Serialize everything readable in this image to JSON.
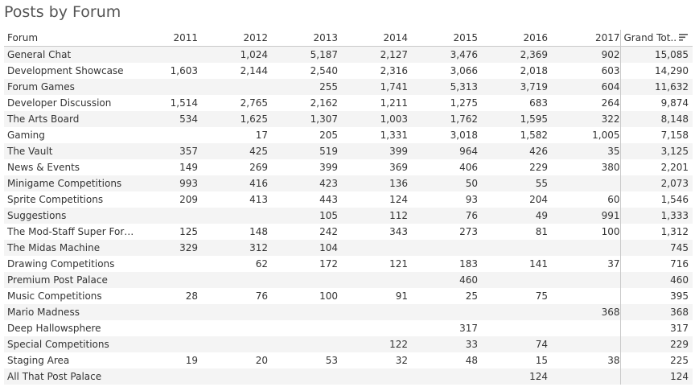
{
  "title": "Posts by Forum",
  "sort_icon": "sort-descending-icon",
  "chart_data": {
    "type": "table",
    "title": "Posts by Forum",
    "row_header": "Forum",
    "columns": [
      "2011",
      "2012",
      "2013",
      "2014",
      "2015",
      "2016",
      "2017"
    ],
    "total_header": "Grand Tot..",
    "rows": [
      {
        "forum": "General Chat",
        "values": [
          "",
          "1,024",
          "5,187",
          "2,127",
          "3,476",
          "2,369",
          "902"
        ],
        "total": "15,085"
      },
      {
        "forum": "Development Showcase",
        "values": [
          "1,603",
          "2,144",
          "2,540",
          "2,316",
          "3,066",
          "2,018",
          "603"
        ],
        "total": "14,290"
      },
      {
        "forum": "Forum Games",
        "values": [
          "",
          "",
          "255",
          "1,741",
          "5,313",
          "3,719",
          "604"
        ],
        "total": "11,632"
      },
      {
        "forum": "Developer Discussion",
        "values": [
          "1,514",
          "2,765",
          "2,162",
          "1,211",
          "1,275",
          "683",
          "264"
        ],
        "total": "9,874"
      },
      {
        "forum": "The Arts Board",
        "values": [
          "534",
          "1,625",
          "1,307",
          "1,003",
          "1,762",
          "1,595",
          "322"
        ],
        "total": "8,148"
      },
      {
        "forum": "Gaming",
        "values": [
          "",
          "17",
          "205",
          "1,331",
          "3,018",
          "1,582",
          "1,005"
        ],
        "total": "7,158"
      },
      {
        "forum": "The Vault",
        "values": [
          "357",
          "425",
          "519",
          "399",
          "964",
          "426",
          "35"
        ],
        "total": "3,125"
      },
      {
        "forum": "News & Events",
        "values": [
          "149",
          "269",
          "399",
          "369",
          "406",
          "229",
          "380"
        ],
        "total": "2,201"
      },
      {
        "forum": "Minigame Competitions",
        "values": [
          "993",
          "416",
          "423",
          "136",
          "50",
          "55",
          ""
        ],
        "total": "2,073"
      },
      {
        "forum": "Sprite Competitions",
        "values": [
          "209",
          "413",
          "443",
          "124",
          "93",
          "204",
          "60"
        ],
        "total": "1,546"
      },
      {
        "forum": "Suggestions",
        "values": [
          "",
          "",
          "105",
          "112",
          "76",
          "49",
          "991"
        ],
        "total": "1,333"
      },
      {
        "forum": "The Mod-Staff Super Foru..",
        "values": [
          "125",
          "148",
          "242",
          "343",
          "273",
          "81",
          "100"
        ],
        "total": "1,312"
      },
      {
        "forum": "The Midas Machine",
        "values": [
          "329",
          "312",
          "104",
          "",
          "",
          "",
          ""
        ],
        "total": "745"
      },
      {
        "forum": "Drawing Competitions",
        "values": [
          "",
          "62",
          "172",
          "121",
          "183",
          "141",
          "37"
        ],
        "total": "716"
      },
      {
        "forum": "Premium Post Palace",
        "values": [
          "",
          "",
          "",
          "",
          "460",
          "",
          ""
        ],
        "total": "460"
      },
      {
        "forum": "Music Competitions",
        "values": [
          "28",
          "76",
          "100",
          "91",
          "25",
          "75",
          ""
        ],
        "total": "395"
      },
      {
        "forum": "Mario Madness",
        "values": [
          "",
          "",
          "",
          "",
          "",
          "",
          "368"
        ],
        "total": "368"
      },
      {
        "forum": "Deep Hallowsphere",
        "values": [
          "",
          "",
          "",
          "",
          "317",
          "",
          ""
        ],
        "total": "317"
      },
      {
        "forum": "Special Competitions",
        "values": [
          "",
          "",
          "",
          "122",
          "33",
          "74",
          ""
        ],
        "total": "229"
      },
      {
        "forum": "Staging Area",
        "values": [
          "19",
          "20",
          "53",
          "32",
          "48",
          "15",
          "38"
        ],
        "total": "225"
      },
      {
        "forum": "All That Post Palace",
        "values": [
          "",
          "",
          "",
          "",
          "",
          "124",
          ""
        ],
        "total": "124"
      }
    ]
  }
}
